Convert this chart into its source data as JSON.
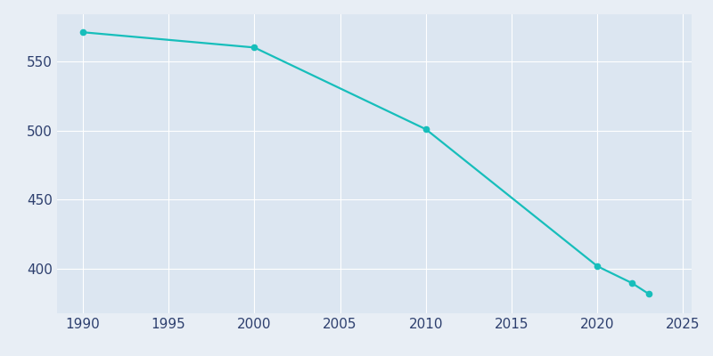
{
  "years": [
    1990,
    2000,
    2010,
    2020,
    2022,
    2023
  ],
  "population": [
    571,
    560,
    501,
    402,
    390,
    382
  ],
  "line_color": "#17bebb",
  "marker_color": "#17bebb",
  "background_color": "#e8eef5",
  "plot_background": "#dce6f1",
  "grid_color": "#ffffff",
  "tick_label_color": "#2d3f6e",
  "xlim": [
    1988.5,
    2025.5
  ],
  "ylim": [
    368,
    584
  ],
  "xticks": [
    1990,
    1995,
    2000,
    2005,
    2010,
    2015,
    2020,
    2025
  ],
  "yticks": [
    400,
    450,
    500,
    550
  ],
  "linewidth": 1.6,
  "markersize": 4.5
}
